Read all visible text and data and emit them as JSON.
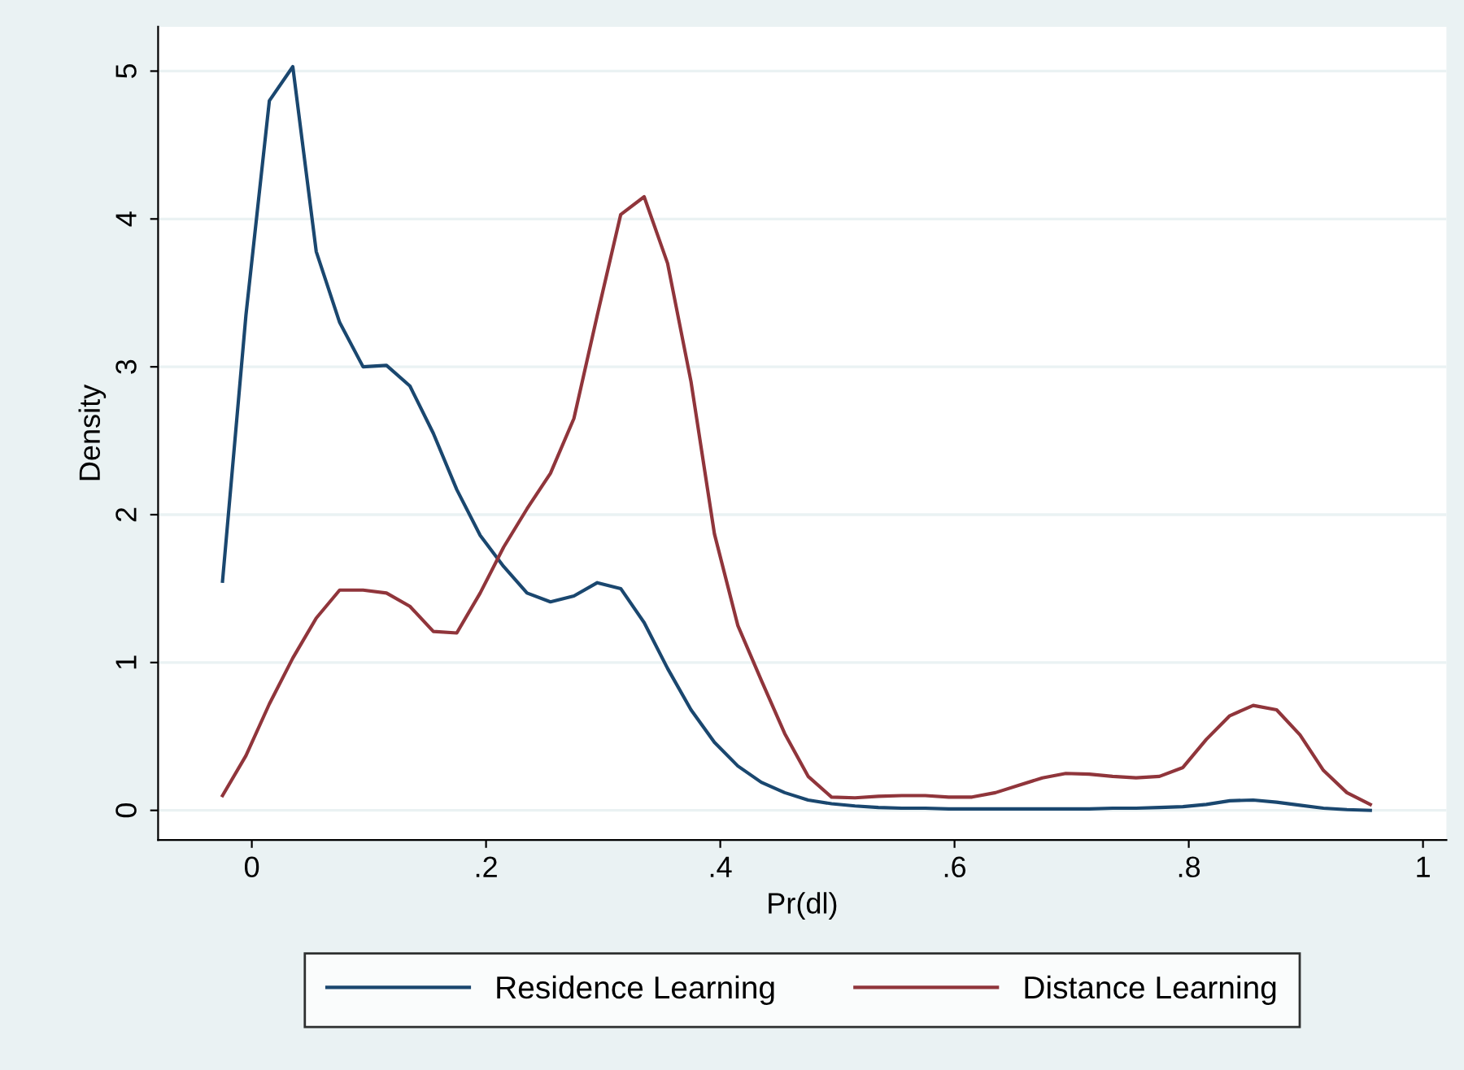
{
  "chart_data": {
    "type": "line",
    "xlabel": "Pr(dl)",
    "ylabel": "Density",
    "x": [
      -0.025,
      -0.005,
      0.015,
      0.035,
      0.055,
      0.075,
      0.095,
      0.115,
      0.135,
      0.155,
      0.175,
      0.195,
      0.215,
      0.235,
      0.255,
      0.275,
      0.295,
      0.315,
      0.335,
      0.355,
      0.375,
      0.395,
      0.415,
      0.435,
      0.455,
      0.475,
      0.495,
      0.515,
      0.535,
      0.555,
      0.575,
      0.595,
      0.615,
      0.635,
      0.655,
      0.675,
      0.695,
      0.715,
      0.735,
      0.755,
      0.775,
      0.795,
      0.815,
      0.835,
      0.855,
      0.875,
      0.895,
      0.915,
      0.935,
      0.955
    ],
    "series": [
      {
        "name": "Residence Learning",
        "color": "#1a476f",
        "values": [
          1.55,
          3.35,
          4.8,
          5.03,
          3.78,
          3.3,
          3.0,
          3.01,
          2.87,
          2.55,
          2.17,
          1.86,
          1.65,
          1.47,
          1.41,
          1.45,
          1.54,
          1.5,
          1.27,
          0.96,
          0.68,
          0.46,
          0.3,
          0.19,
          0.12,
          0.07,
          0.045,
          0.03,
          0.02,
          0.015,
          0.015,
          0.01,
          0.01,
          0.01,
          0.01,
          0.01,
          0.01,
          0.01,
          0.015,
          0.015,
          0.02,
          0.025,
          0.04,
          0.065,
          0.07,
          0.055,
          0.035,
          0.015,
          0.005,
          0.0
        ]
      },
      {
        "name": "Distance Learning",
        "color": "#90353b",
        "values": [
          0.1,
          0.37,
          0.72,
          1.03,
          1.3,
          1.49,
          1.49,
          1.47,
          1.38,
          1.21,
          1.2,
          1.47,
          1.78,
          2.04,
          2.28,
          2.65,
          3.35,
          4.03,
          4.15,
          3.7,
          2.9,
          1.87,
          1.25,
          0.88,
          0.52,
          0.23,
          0.09,
          0.085,
          0.095,
          0.1,
          0.1,
          0.09,
          0.09,
          0.12,
          0.17,
          0.22,
          0.25,
          0.245,
          0.23,
          0.22,
          0.23,
          0.29,
          0.48,
          0.64,
          0.71,
          0.68,
          0.51,
          0.27,
          0.12,
          0.04
        ]
      }
    ],
    "xlim": [
      -0.08,
      1.02
    ],
    "xticks": [
      {
        "value": 0,
        "label": "0"
      },
      {
        "value": 0.2,
        "label": ".2"
      },
      {
        "value": 0.4,
        "label": ".4"
      },
      {
        "value": 0.6,
        "label": ".6"
      },
      {
        "value": 0.8,
        "label": ".8"
      },
      {
        "value": 1,
        "label": "1"
      }
    ],
    "ylim": [
      -0.2,
      5.3
    ],
    "yticks": [
      0,
      1,
      2,
      3,
      4,
      5
    ],
    "grid": "y",
    "legend": "bottom"
  }
}
